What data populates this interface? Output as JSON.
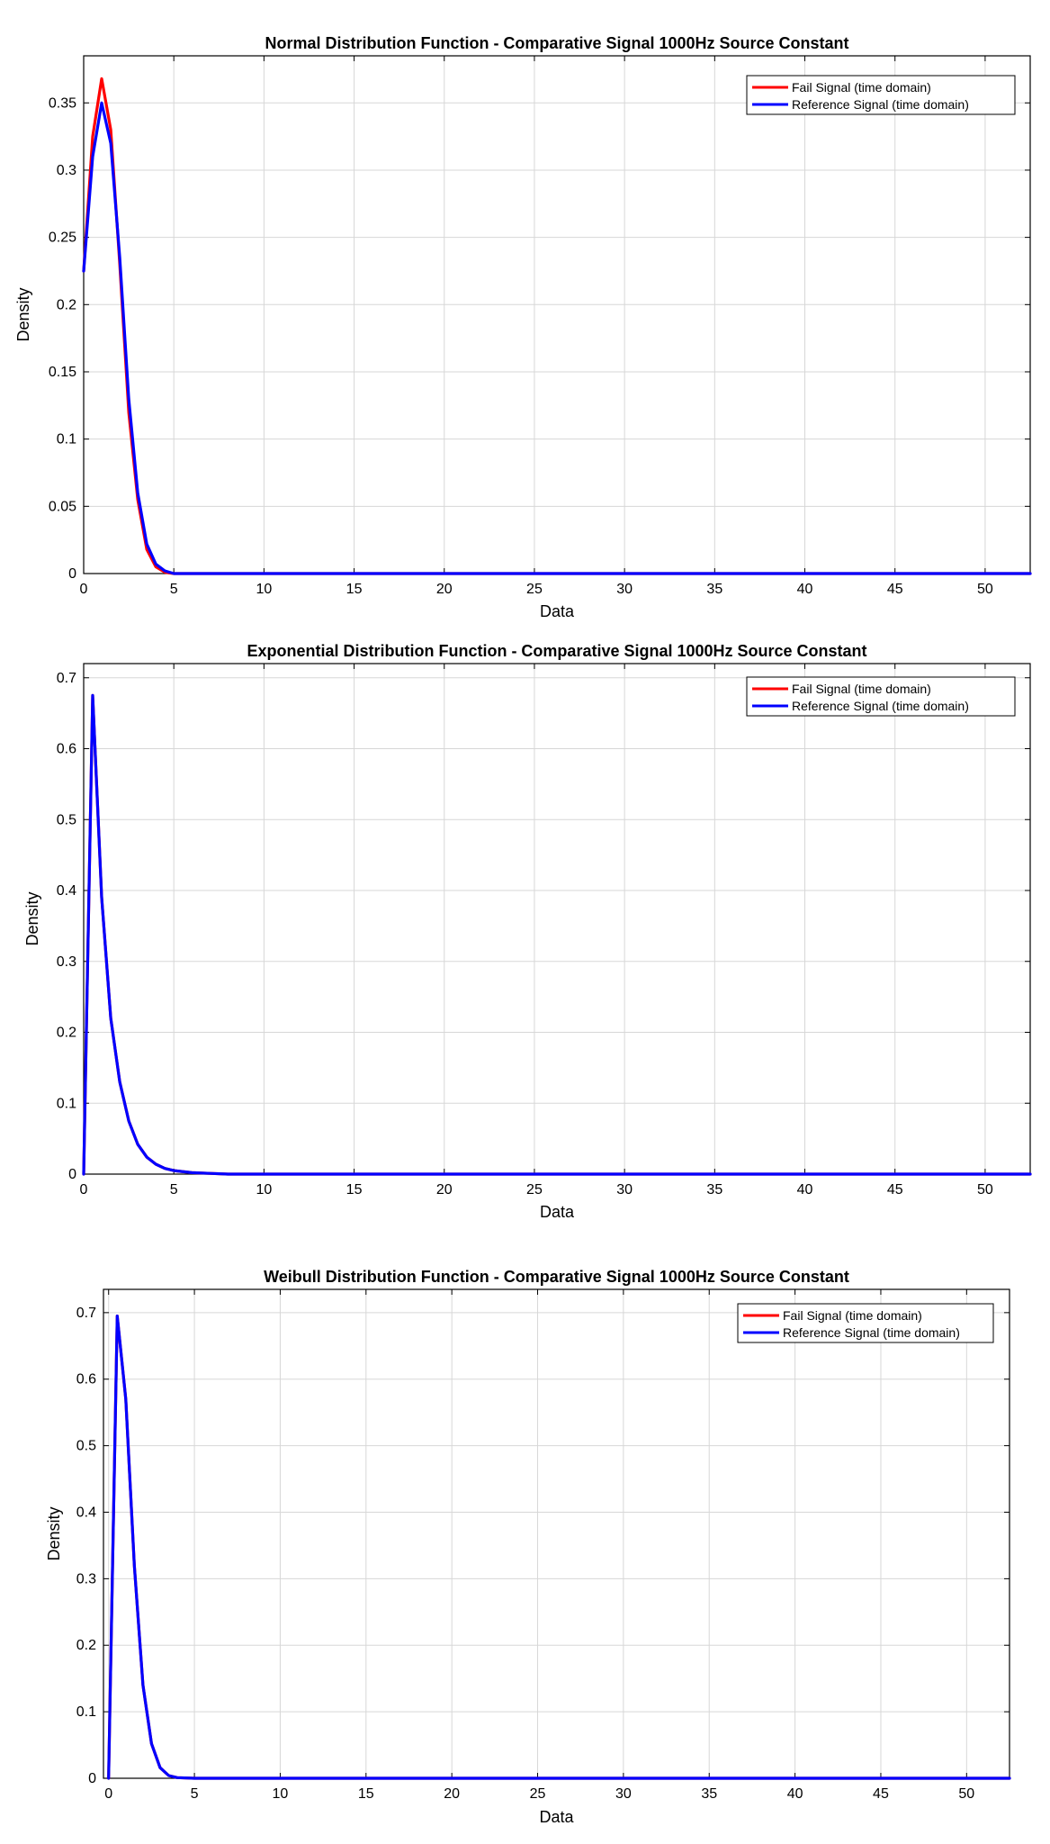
{
  "chart_data": [
    {
      "type": "line",
      "title": "Normal Distribution Function - Comparative Signal 1000Hz Source Constant",
      "xlabel": "Data",
      "ylabel": "Density",
      "xlim": [
        0,
        52.5
      ],
      "ylim": [
        0,
        0.385
      ],
      "xticks": [
        "0",
        "5",
        "10",
        "15",
        "20",
        "25",
        "30",
        "35",
        "40",
        "45",
        "50"
      ],
      "yticks": [
        "0",
        "0.05",
        "0.1",
        "0.15",
        "0.2",
        "0.25",
        "0.3",
        "0.35"
      ],
      "grid": true,
      "legend_position": "top-right",
      "series": [
        {
          "name": "Fail Signal (time domain)",
          "color": "#ff0000",
          "x": [
            0,
            0.5,
            1,
            1.5,
            2,
            2.5,
            3,
            3.5,
            4,
            4.5,
            5,
            6,
            8,
            52.5
          ],
          "y": [
            0.225,
            0.325,
            0.368,
            0.33,
            0.23,
            0.12,
            0.055,
            0.018,
            0.005,
            0.001,
            0,
            0,
            0,
            0
          ]
        },
        {
          "name": "Reference Signal (time domain)",
          "color": "#0000ff",
          "x": [
            0,
            0.5,
            1,
            1.5,
            2,
            2.5,
            3,
            3.5,
            4,
            4.5,
            5,
            6,
            8,
            52.5
          ],
          "y": [
            0.225,
            0.31,
            0.35,
            0.32,
            0.235,
            0.13,
            0.06,
            0.022,
            0.007,
            0.002,
            0,
            0,
            0,
            0
          ]
        }
      ]
    },
    {
      "type": "line",
      "title": "Exponential Distribution Function - Comparative Signal 1000Hz Source Constant",
      "xlabel": "Data",
      "ylabel": "Density",
      "xlim": [
        0,
        52.5
      ],
      "ylim": [
        0,
        0.72
      ],
      "xticks": [
        "0",
        "5",
        "10",
        "15",
        "20",
        "25",
        "30",
        "35",
        "40",
        "45",
        "50"
      ],
      "yticks": [
        "0",
        "0.1",
        "0.2",
        "0.3",
        "0.4",
        "0.5",
        "0.6",
        "0.7"
      ],
      "grid": true,
      "legend_position": "top-right",
      "series": [
        {
          "name": "Fail Signal (time domain)",
          "color": "#ff0000",
          "x": [
            0,
            0.5,
            1,
            1.5,
            2,
            2.5,
            3,
            3.5,
            4,
            4.5,
            5,
            6,
            7,
            8,
            10,
            52.5
          ],
          "y": [
            0,
            0.675,
            0.39,
            0.22,
            0.13,
            0.075,
            0.042,
            0.024,
            0.014,
            0.008,
            0.005,
            0.002,
            0.001,
            0,
            0,
            0
          ]
        },
        {
          "name": "Reference Signal (time domain)",
          "color": "#0000ff",
          "x": [
            0,
            0.5,
            1,
            1.5,
            2,
            2.5,
            3,
            3.5,
            4,
            4.5,
            5,
            6,
            7,
            8,
            10,
            52.5
          ],
          "y": [
            0,
            0.675,
            0.39,
            0.22,
            0.13,
            0.075,
            0.042,
            0.024,
            0.014,
            0.008,
            0.005,
            0.002,
            0.001,
            0,
            0,
            0
          ]
        }
      ]
    },
    {
      "type": "line",
      "title": "Weibull Distribution Function - Comparative Signal 1000Hz Source Constant",
      "xlabel": "Data",
      "ylabel": "Density",
      "xlim": [
        -0.3,
        52.5
      ],
      "ylim": [
        0,
        0.735
      ],
      "xticks": [
        "0",
        "5",
        "10",
        "15",
        "20",
        "25",
        "30",
        "35",
        "40",
        "45",
        "50"
      ],
      "yticks": [
        "0",
        "0.1",
        "0.2",
        "0.3",
        "0.4",
        "0.5",
        "0.6",
        "0.7"
      ],
      "grid": true,
      "legend_position": "top-right",
      "series": [
        {
          "name": "Fail Signal (time domain)",
          "color": "#ff0000",
          "x": [
            0,
            0.5,
            1,
            1.5,
            2,
            2.5,
            3,
            3.5,
            4,
            5,
            6,
            52.5
          ],
          "y": [
            0,
            0.695,
            0.57,
            0.32,
            0.14,
            0.052,
            0.016,
            0.004,
            0.001,
            0,
            0,
            0
          ]
        },
        {
          "name": "Reference Signal (time domain)",
          "color": "#0000ff",
          "x": [
            0,
            0.5,
            1,
            1.5,
            2,
            2.5,
            3,
            3.5,
            4,
            5,
            6,
            52.5
          ],
          "y": [
            0,
            0.695,
            0.57,
            0.32,
            0.14,
            0.052,
            0.016,
            0.004,
            0.001,
            0,
            0,
            0
          ]
        }
      ]
    }
  ]
}
